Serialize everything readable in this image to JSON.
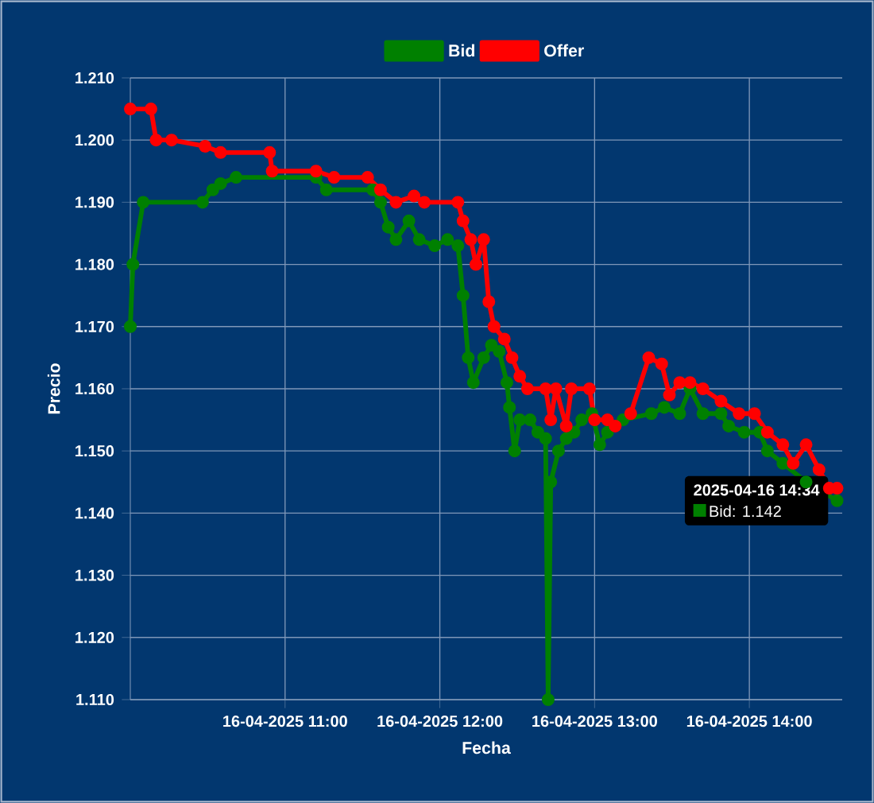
{
  "chart_data": {
    "type": "line",
    "xlabel": "Fecha",
    "ylabel": "Precio",
    "xlim": [
      "2025-04-16T10:00",
      "2025-04-16T14:36"
    ],
    "ylim": [
      1.11,
      1.21
    ],
    "xticks": [
      {
        "value": "2025-04-16T11:00",
        "label": "16-04-2025 11:00"
      },
      {
        "value": "2025-04-16T12:00",
        "label": "16-04-2025 12:00"
      },
      {
        "value": "2025-04-16T13:00",
        "label": "16-04-2025 13:00"
      },
      {
        "value": "2025-04-16T14:00",
        "label": "16-04-2025 14:00"
      }
    ],
    "yticks": [
      {
        "value": 1.11,
        "label": "1.110"
      },
      {
        "value": 1.12,
        "label": "1.120"
      },
      {
        "value": 1.13,
        "label": "1.130"
      },
      {
        "value": 1.14,
        "label": "1.140"
      },
      {
        "value": 1.15,
        "label": "1.150"
      },
      {
        "value": 1.16,
        "label": "1.160"
      },
      {
        "value": 1.17,
        "label": "1.170"
      },
      {
        "value": 1.18,
        "label": "1.180"
      },
      {
        "value": 1.19,
        "label": "1.190"
      },
      {
        "value": 1.2,
        "label": "1.200"
      },
      {
        "value": 1.21,
        "label": "1.210"
      }
    ],
    "grid": true,
    "legend": "top",
    "marker": "circle",
    "series": [
      {
        "name": "Bid",
        "color": "#008000",
        "x": [
          "2025-04-16T10:00",
          "2025-04-16T10:01",
          "2025-04-16T10:05",
          "2025-04-16T10:28",
          "2025-04-16T10:32",
          "2025-04-16T10:35",
          "2025-04-16T10:41",
          "2025-04-16T11:12",
          "2025-04-16T11:16",
          "2025-04-16T11:34",
          "2025-04-16T11:37",
          "2025-04-16T11:40",
          "2025-04-16T11:43",
          "2025-04-16T11:48",
          "2025-04-16T11:52",
          "2025-04-16T11:58",
          "2025-04-16T12:03",
          "2025-04-16T12:07",
          "2025-04-16T12:09",
          "2025-04-16T12:11",
          "2025-04-16T12:13",
          "2025-04-16T12:17",
          "2025-04-16T12:20",
          "2025-04-16T12:23",
          "2025-04-16T12:26",
          "2025-04-16T12:27",
          "2025-04-16T12:29",
          "2025-04-16T12:31",
          "2025-04-16T12:35",
          "2025-04-16T12:38",
          "2025-04-16T12:41",
          "2025-04-16T12:42",
          "2025-04-16T12:43",
          "2025-04-16T12:46",
          "2025-04-16T12:49",
          "2025-04-16T12:52",
          "2025-04-16T12:55",
          "2025-04-16T12:59",
          "2025-04-16T13:02",
          "2025-04-16T13:05",
          "2025-04-16T13:11",
          "2025-04-16T13:22",
          "2025-04-16T13:27",
          "2025-04-16T13:33",
          "2025-04-16T13:37",
          "2025-04-16T13:42",
          "2025-04-16T13:49",
          "2025-04-16T13:52",
          "2025-04-16T13:58",
          "2025-04-16T14:04",
          "2025-04-16T14:07",
          "2025-04-16T14:13",
          "2025-04-16T14:22",
          "2025-04-16T14:34"
        ],
        "values": [
          1.17,
          1.18,
          1.19,
          1.19,
          1.192,
          1.193,
          1.194,
          1.194,
          1.192,
          1.192,
          1.19,
          1.186,
          1.184,
          1.187,
          1.184,
          1.183,
          1.184,
          1.183,
          1.175,
          1.165,
          1.161,
          1.165,
          1.167,
          1.166,
          1.161,
          1.157,
          1.15,
          1.155,
          1.155,
          1.153,
          1.152,
          1.11,
          1.145,
          1.15,
          1.152,
          1.153,
          1.155,
          1.156,
          1.151,
          1.153,
          1.155,
          1.156,
          1.157,
          1.156,
          1.16,
          1.156,
          1.156,
          1.154,
          1.153,
          1.153,
          1.15,
          1.148,
          1.145,
          1.142
        ]
      },
      {
        "name": "Offer",
        "color": "#ff0000",
        "x": [
          "2025-04-16T10:00",
          "2025-04-16T10:08",
          "2025-04-16T10:10",
          "2025-04-16T10:16",
          "2025-04-16T10:29",
          "2025-04-16T10:35",
          "2025-04-16T10:54",
          "2025-04-16T10:55",
          "2025-04-16T11:12",
          "2025-04-16T11:19",
          "2025-04-16T11:32",
          "2025-04-16T11:37",
          "2025-04-16T11:43",
          "2025-04-16T11:50",
          "2025-04-16T11:54",
          "2025-04-16T12:07",
          "2025-04-16T12:09",
          "2025-04-16T12:12",
          "2025-04-16T12:14",
          "2025-04-16T12:17",
          "2025-04-16T12:19",
          "2025-04-16T12:21",
          "2025-04-16T12:25",
          "2025-04-16T12:28",
          "2025-04-16T12:31",
          "2025-04-16T12:34",
          "2025-04-16T12:41",
          "2025-04-16T12:43",
          "2025-04-16T12:45",
          "2025-04-16T12:49",
          "2025-04-16T12:51",
          "2025-04-16T12:58",
          "2025-04-16T13:00",
          "2025-04-16T13:05",
          "2025-04-16T13:08",
          "2025-04-16T13:14",
          "2025-04-16T13:21",
          "2025-04-16T13:26",
          "2025-04-16T13:29",
          "2025-04-16T13:33",
          "2025-04-16T13:37",
          "2025-04-16T13:42",
          "2025-04-16T13:49",
          "2025-04-16T13:56",
          "2025-04-16T14:02",
          "2025-04-16T14:07",
          "2025-04-16T14:13",
          "2025-04-16T14:17",
          "2025-04-16T14:22",
          "2025-04-16T14:27",
          "2025-04-16T14:31",
          "2025-04-16T14:34"
        ],
        "values": [
          1.205,
          1.205,
          1.2,
          1.2,
          1.199,
          1.198,
          1.198,
          1.195,
          1.195,
          1.194,
          1.194,
          1.192,
          1.19,
          1.191,
          1.19,
          1.19,
          1.187,
          1.184,
          1.18,
          1.184,
          1.174,
          1.17,
          1.168,
          1.165,
          1.162,
          1.16,
          1.16,
          1.155,
          1.16,
          1.154,
          1.16,
          1.16,
          1.155,
          1.155,
          1.154,
          1.156,
          1.165,
          1.164,
          1.159,
          1.161,
          1.161,
          1.16,
          1.158,
          1.156,
          1.156,
          1.153,
          1.151,
          1.148,
          1.151,
          1.147,
          1.144,
          1.144
        ]
      }
    ],
    "annotations": [
      {
        "text": "2025-04-16 14:34",
        "x": "2025-04-16T14:34",
        "y": 1.142
      },
      "Bid: 1.142"
    ]
  }
}
